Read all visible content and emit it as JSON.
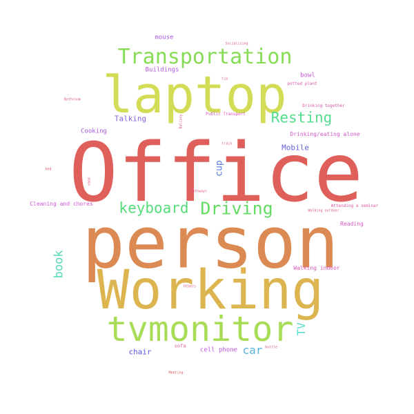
{
  "words": [
    {
      "key": "office",
      "text": "Office",
      "color": "#df5f5a"
    },
    {
      "key": "person",
      "text": "person",
      "color": "#dc8a54"
    },
    {
      "key": "working",
      "text": "Working",
      "color": "#dcb551"
    },
    {
      "key": "laptop",
      "text": "laptop",
      "color": "#d3dc56"
    },
    {
      "key": "tvmonitor",
      "text": "tvmonitor",
      "color": "#a8dc56"
    },
    {
      "key": "transportation",
      "text": "Transportation",
      "color": "#86dc56"
    },
    {
      "key": "driving",
      "text": "Driving",
      "color": "#62dc62"
    },
    {
      "key": "keyboard",
      "text": "keyboard",
      "color": "#56dc7a"
    },
    {
      "key": "resting",
      "text": "Resting",
      "color": "#56dc8e"
    },
    {
      "key": "book",
      "text": "book",
      "color": "#56dcb9"
    },
    {
      "key": "car",
      "text": "car",
      "color": "#56b2dc"
    },
    {
      "key": "tv",
      "text": "TV",
      "color": "#56dcd3"
    },
    {
      "key": "cup",
      "text": "cup",
      "color": "#567edc"
    },
    {
      "key": "mobile",
      "text": "Mobile",
      "color": "#6262dc"
    },
    {
      "key": "chair",
      "text": "chair",
      "color": "#5a56dc"
    },
    {
      "key": "talking",
      "text": "Talking",
      "color": "#8a62dc"
    },
    {
      "key": "cooking",
      "text": "Cooking",
      "color": "#a856dc"
    },
    {
      "key": "mouse",
      "text": "mouse",
      "color": "#a856dc"
    },
    {
      "key": "buildings",
      "text": "Buildings",
      "color": "#b156dc"
    },
    {
      "key": "bowl",
      "text": "bowl",
      "color": "#c956dc"
    },
    {
      "key": "cell_phone",
      "text": "cell phone",
      "color": "#be56dc"
    },
    {
      "key": "cleaning",
      "text": "Cleaning and chores",
      "color": "#d356dc"
    },
    {
      "key": "drinking_alone",
      "text": "Drinking/eating alone",
      "color": "#d656c9"
    },
    {
      "key": "reading",
      "text": "Reading",
      "color": "#dc56c6"
    },
    {
      "key": "walking_indoor",
      "text": "Walking indoor",
      "color": "#dc56b9"
    },
    {
      "key": "public_transport",
      "text": "Public Transport",
      "color": "#dc56b6"
    },
    {
      "key": "potted_plant",
      "text": "potted plant",
      "color": "#dc56b0"
    },
    {
      "key": "drinking_together",
      "text": "Drinking together",
      "color": "#dc56a8"
    },
    {
      "key": "attending_seminar",
      "text": "Attending a seminar",
      "color": "#dc56a0"
    },
    {
      "key": "sofa",
      "text": "sofa",
      "color": "#dc5a9a"
    },
    {
      "key": "bottle",
      "text": "bottle",
      "color": "#dc5a90"
    },
    {
      "key": "pathways",
      "text": "Pathways",
      "color": "#dc5a88"
    },
    {
      "key": "walking_outdoor",
      "text": "Walking outdoor",
      "color": "#dc5a80"
    },
    {
      "key": "others",
      "text": "Others",
      "color": "#dc5a78"
    },
    {
      "key": "balcony",
      "text": "Balcony",
      "color": "#dc5a86"
    },
    {
      "key": "socializing",
      "text": "Socializing",
      "color": "#dc5a92"
    },
    {
      "key": "tie",
      "text": "tie",
      "color": "#dc5a9e"
    },
    {
      "key": "bathroom",
      "text": "Bathroom",
      "color": "#dc5a70"
    },
    {
      "key": "bed",
      "text": "bed",
      "color": "#dc5a68"
    },
    {
      "key": "vase",
      "text": "vase",
      "color": "#dc5a7c"
    },
    {
      "key": "train",
      "text": "train",
      "color": "#dc5a74"
    },
    {
      "key": "meeting",
      "text": "Meeting",
      "color": "#dc5a64"
    }
  ]
}
